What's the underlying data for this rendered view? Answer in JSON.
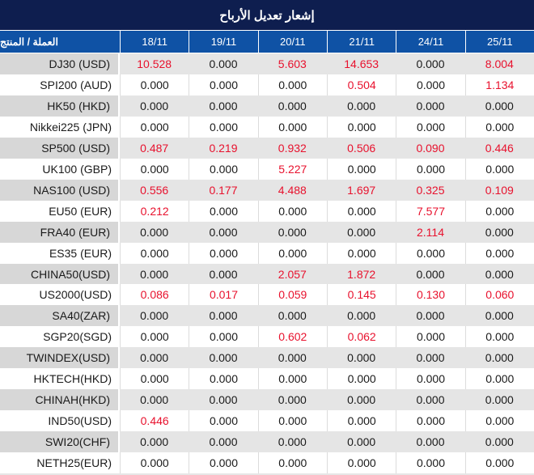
{
  "title": "إشعار تعديل الأرباح",
  "table": {
    "product_header": "العملة / المنتج",
    "date_headers": [
      "18/11",
      "19/11",
      "20/11",
      "21/11",
      "24/11",
      "25/11"
    ],
    "zero_value": "0.000",
    "rows": [
      {
        "product": "DJ30 (USD)",
        "values": [
          "10.528",
          "0.000",
          "5.603",
          "14.653",
          "0.000",
          "8.004"
        ]
      },
      {
        "product": "SPI200 (AUD)",
        "values": [
          "0.000",
          "0.000",
          "0.000",
          "0.504",
          "0.000",
          "1.134"
        ]
      },
      {
        "product": "HK50 (HKD)",
        "values": [
          "0.000",
          "0.000",
          "0.000",
          "0.000",
          "0.000",
          "0.000"
        ]
      },
      {
        "product": "Nikkei225 (JPN)",
        "values": [
          "0.000",
          "0.000",
          "0.000",
          "0.000",
          "0.000",
          "0.000"
        ]
      },
      {
        "product": "SP500 (USD)",
        "values": [
          "0.487",
          "0.219",
          "0.932",
          "0.506",
          "0.090",
          "0.446"
        ]
      },
      {
        "product": "UK100 (GBP)",
        "values": [
          "0.000",
          "0.000",
          "5.227",
          "0.000",
          "0.000",
          "0.000"
        ]
      },
      {
        "product": "NAS100 (USD)",
        "values": [
          "0.556",
          "0.177",
          "4.488",
          "1.697",
          "0.325",
          "0.109"
        ]
      },
      {
        "product": "EU50 (EUR)",
        "values": [
          "0.212",
          "0.000",
          "0.000",
          "0.000",
          "7.577",
          "0.000"
        ]
      },
      {
        "product": "FRA40 (EUR)",
        "values": [
          "0.000",
          "0.000",
          "0.000",
          "0.000",
          "2.114",
          "0.000"
        ]
      },
      {
        "product": "ES35 (EUR)",
        "values": [
          "0.000",
          "0.000",
          "0.000",
          "0.000",
          "0.000",
          "0.000"
        ]
      },
      {
        "product": "CHINA50(USD)",
        "values": [
          "0.000",
          "0.000",
          "2.057",
          "1.872",
          "0.000",
          "0.000"
        ]
      },
      {
        "product": "US2000(USD)",
        "values": [
          "0.086",
          "0.017",
          "0.059",
          "0.145",
          "0.130",
          "0.060"
        ]
      },
      {
        "product": "SA40(ZAR)",
        "values": [
          "0.000",
          "0.000",
          "0.000",
          "0.000",
          "0.000",
          "0.000"
        ]
      },
      {
        "product": "SGP20(SGD)",
        "values": [
          "0.000",
          "0.000",
          "0.602",
          "0.062",
          "0.000",
          "0.000"
        ]
      },
      {
        "product": "TWINDEX(USD)",
        "values": [
          "0.000",
          "0.000",
          "0.000",
          "0.000",
          "0.000",
          "0.000"
        ]
      },
      {
        "product": "HKTECH(HKD)",
        "values": [
          "0.000",
          "0.000",
          "0.000",
          "0.000",
          "0.000",
          "0.000"
        ]
      },
      {
        "product": "CHINAH(HKD)",
        "values": [
          "0.000",
          "0.000",
          "0.000",
          "0.000",
          "0.000",
          "0.000"
        ]
      },
      {
        "product": "IND50(USD)",
        "values": [
          "0.446",
          "0.000",
          "0.000",
          "0.000",
          "0.000",
          "0.000"
        ]
      },
      {
        "product": "SWI20(CHF)",
        "values": [
          "0.000",
          "0.000",
          "0.000",
          "0.000",
          "0.000",
          "0.000"
        ]
      },
      {
        "product": "NETH25(EUR)",
        "values": [
          "0.000",
          "0.000",
          "0.000",
          "0.000",
          "0.000",
          "0.000"
        ]
      }
    ]
  },
  "colors": {
    "title_bar": "#0e1e4f",
    "header_bar": "#0f52a5",
    "highlight_value": "#e8112d",
    "alt_row_name_bg": "#d7d7d7",
    "alt_row_value_bg": "#e5e5e5"
  }
}
